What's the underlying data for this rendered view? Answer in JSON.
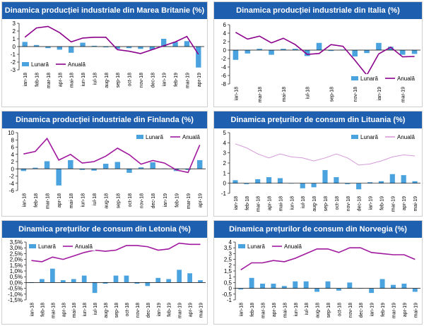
{
  "colors": {
    "header_bg": "#1f5fb0",
    "bar": "#4aa3df",
    "line_dark": "#8b008b",
    "line_light": "#d59bd9",
    "axis": "#000000"
  },
  "chart_data": [
    {
      "type": "bar+line",
      "title": "Dinamica producției industriale din Marea Britanie (%)",
      "categories": [
        "ian-18",
        "feb-18",
        "mar-18",
        "apr-18",
        "mai-18",
        "iun-18",
        "iul-18",
        "aug-18",
        "sep-18",
        "oct-18",
        "nov-18",
        "dec-18",
        "ian-19",
        "feb-19",
        "mar-19",
        "apr-19"
      ],
      "series": [
        {
          "name": "Lunară",
          "kind": "bar",
          "values": [
            0.6,
            0.2,
            -0.2,
            -0.4,
            -0.8,
            0.5,
            0.1,
            -0.1,
            -0.3,
            -0.2,
            -0.3,
            -0.4,
            1.0,
            0.6,
            0.7,
            -2.7
          ]
        },
        {
          "name": "Anuală",
          "kind": "line",
          "values": [
            1.2,
            2.4,
            2.6,
            1.8,
            0.6,
            1.1,
            1.2,
            1.2,
            -0.4,
            -0.6,
            -0.9,
            -0.4,
            0.1,
            0.6,
            1.3,
            -1.0
          ]
        }
      ],
      "ylim": [
        -3,
        3
      ],
      "yticks": [
        -3,
        -2,
        -1,
        0,
        1,
        2,
        3
      ],
      "ytick_labels": [
        "-3",
        "-2",
        "-1",
        "0",
        "1",
        "2",
        "3"
      ],
      "legend": [
        "Lunară",
        "Anuală"
      ],
      "legend_position": "bottom-left"
    },
    {
      "type": "bar+line",
      "title": "Dinamica producției industriale din Italia (%)",
      "categories": [
        "ian-18",
        "feb-18",
        "mar-18",
        "apr-18",
        "mai-18",
        "iun-18",
        "iul-18",
        "aug-18",
        "sep-18",
        "oct-18",
        "nov-18",
        "dec-18",
        "ian-19",
        "feb-19",
        "mar-19",
        "apr-19"
      ],
      "x_tick_labels": [
        "ian-18",
        "mar-18",
        "mai-18",
        "iul-18",
        "sep-18",
        "nov-18",
        "ian-19",
        "mar-19"
      ],
      "series": [
        {
          "name": "Lunară",
          "kind": "bar",
          "values": [
            -2.3,
            -0.8,
            0.3,
            -1.1,
            0.3,
            0.3,
            -1.4,
            1.7,
            -0.2,
            0.1,
            -1.5,
            -0.7,
            1.7,
            0.8,
            -1.1,
            -0.9
          ]
        },
        {
          "name": "Anuală",
          "kind": "line",
          "values": [
            4.2,
            2.6,
            3.3,
            1.7,
            2.8,
            1.3,
            -1.0,
            -0.8,
            1.3,
            0.9,
            -2.4,
            -5.9,
            -0.9,
            0.7,
            -1.6,
            -1.5
          ]
        }
      ],
      "ylim": [
        -8,
        6
      ],
      "yticks": [
        -8,
        -6,
        -4,
        -2,
        0,
        2,
        4,
        6
      ],
      "ytick_labels": [
        "-8",
        "-6",
        "-4",
        "-2",
        "0",
        "2",
        "4",
        "6"
      ],
      "legend": [
        "Lunară",
        "Anuală"
      ],
      "legend_position": "bottom-right"
    },
    {
      "type": "bar+line",
      "title": "Dinamica producției industriale din Finlanda (%)",
      "categories": [
        "ian-18",
        "feb-18",
        "mar-18",
        "apr-18",
        "mai-18",
        "iun-18",
        "iul-18",
        "aug-18",
        "sep-18",
        "oct-18",
        "nov-18",
        "dec-18",
        "ian-19",
        "feb-19",
        "mar-19",
        "apr-19"
      ],
      "series": [
        {
          "name": "Lunară",
          "kind": "bar",
          "values": [
            -0.6,
            0.3,
            2.1,
            -4.6,
            2.4,
            -0.3,
            -0.5,
            1.4,
            1.9,
            -1.1,
            0.4,
            1.8,
            0.1,
            -0.6,
            -0.3,
            2.4
          ]
        },
        {
          "name": "Anuală",
          "kind": "line",
          "values": [
            4.1,
            4.8,
            8.4,
            2.4,
            4.0,
            1.6,
            2.0,
            3.5,
            5.7,
            3.9,
            1.3,
            2.3,
            1.6,
            -0.3,
            -1.0,
            6.6
          ]
        }
      ],
      "ylim": [
        -6,
        10
      ],
      "yticks": [
        -6,
        -4,
        -2,
        0,
        2,
        4,
        6,
        8,
        10
      ],
      "ytick_labels": [
        "-6",
        "-4",
        "-2",
        "0",
        "2",
        "4",
        "6",
        "8",
        "10"
      ],
      "legend": [
        "Lunară",
        "Anuală"
      ],
      "legend_position": "top-right"
    },
    {
      "type": "bar+line",
      "title": "Dinamica prețurilor de consum din Lituania (%)",
      "categories": [
        "ian-18",
        "feb-18",
        "mar-18",
        "apr-18",
        "mai-18",
        "iun-18",
        "iul-18",
        "aug-18",
        "sep-18",
        "oct-18",
        "nov-18",
        "dec-18",
        "ian-19",
        "feb-19",
        "mar-19",
        "apr-19",
        "mai-19"
      ],
      "series": [
        {
          "name": "Lunară",
          "kind": "bar",
          "values": [
            0.3,
            -0.1,
            0.4,
            0.6,
            0.5,
            0.0,
            -0.5,
            -0.4,
            1.3,
            0.6,
            -0.1,
            -0.6,
            0.1,
            0.2,
            0.9,
            0.8,
            0.2
          ]
        },
        {
          "name": "Anuală",
          "kind": "line",
          "values": [
            3.9,
            3.5,
            2.9,
            2.5,
            2.9,
            2.6,
            2.5,
            2.2,
            2.5,
            2.9,
            2.5,
            1.8,
            1.9,
            2.2,
            2.6,
            2.8,
            2.7
          ]
        }
      ],
      "ylim": [
        -1,
        5
      ],
      "yticks": [
        -1,
        0,
        1,
        2,
        3,
        4,
        5
      ],
      "ytick_labels": [
        "-1",
        "0",
        "1",
        "2",
        "3",
        "4",
        "5"
      ],
      "legend": [
        "Lunară",
        "Anuală"
      ],
      "legend_position": "top-right"
    },
    {
      "type": "bar+line",
      "title": "Dinamica prețurilor de consum din Letonia (%)",
      "categories": [
        "ian-18",
        "feb-18",
        "mar-18",
        "apr-18",
        "mai-18",
        "iun-18",
        "iul-18",
        "aug-18",
        "sep-18",
        "oct-18",
        "nov-18",
        "dec-18",
        "ian-19",
        "feb-19",
        "mar-19",
        "apr-19",
        "mai-19"
      ],
      "series": [
        {
          "name": "Lunară",
          "kind": "bar",
          "values": [
            0.0,
            0.3,
            1.2,
            0.2,
            0.3,
            0.6,
            -0.9,
            -0.1,
            0.6,
            0.6,
            -0.1,
            -0.3,
            0.4,
            0.3,
            1.1,
            0.8,
            0.2
          ]
        },
        {
          "name": "Anuală",
          "kind": "line",
          "values": [
            1.9,
            1.8,
            2.2,
            2.0,
            2.3,
            2.6,
            2.8,
            2.7,
            2.8,
            3.2,
            3.2,
            3.1,
            2.8,
            2.9,
            3.4,
            3.3,
            3.3
          ]
        }
      ],
      "ylim": [
        -1.5,
        3.5
      ],
      "yticks": [
        -1.5,
        -1.0,
        -0.5,
        0,
        0.5,
        1.0,
        1.5,
        2.0,
        2.5,
        3.0,
        3.5
      ],
      "ytick_labels": [
        "-1,5%",
        "-1,0%",
        "-0,5%",
        "0,0%",
        "0,5%",
        "1,0%",
        "1,5%",
        "2,0%",
        "2,5%",
        "3,0%",
        "3,5%"
      ],
      "legend": [
        "Lunară",
        "Anuală"
      ],
      "legend_position": "top-left"
    },
    {
      "type": "bar+line",
      "title": "Dinamica prețurilor de consum din Norvegia (%)",
      "categories": [
        "ian-18",
        "feb-18",
        "mar-18",
        "apr-18",
        "mai-18",
        "iun-18",
        "iul-18",
        "aug-18",
        "sep-18",
        "oct-18",
        "nov-18",
        "dec-18",
        "ian-19",
        "feb-19",
        "mar-19",
        "apr-19",
        "mai-19"
      ],
      "series": [
        {
          "name": "Lunară",
          "kind": "bar",
          "values": [
            -0.1,
            0.9,
            0.4,
            0.4,
            0.2,
            0.6,
            0.6,
            -0.3,
            0.6,
            -0.2,
            0.5,
            0.0,
            -0.4,
            0.8,
            0.3,
            0.4,
            -0.3
          ]
        },
        {
          "name": "Anuală",
          "kind": "line",
          "values": [
            1.6,
            2.2,
            2.2,
            2.4,
            2.3,
            2.6,
            3.0,
            3.4,
            3.4,
            3.1,
            3.5,
            3.5,
            3.1,
            3.0,
            2.9,
            2.9,
            2.5
          ]
        }
      ],
      "ylim": [
        -1,
        4
      ],
      "yticks": [
        -1,
        -0.5,
        0,
        0.5,
        1,
        1.5,
        2,
        2.5,
        3,
        3.5,
        4
      ],
      "ytick_labels": [
        "-1",
        "-0,5",
        "0",
        "0,5",
        "1",
        "1,5",
        "2",
        "2,5",
        "3",
        "3,5",
        "4"
      ],
      "legend": [
        "Lunară",
        "Anuală"
      ],
      "legend_position": "top-left"
    }
  ]
}
